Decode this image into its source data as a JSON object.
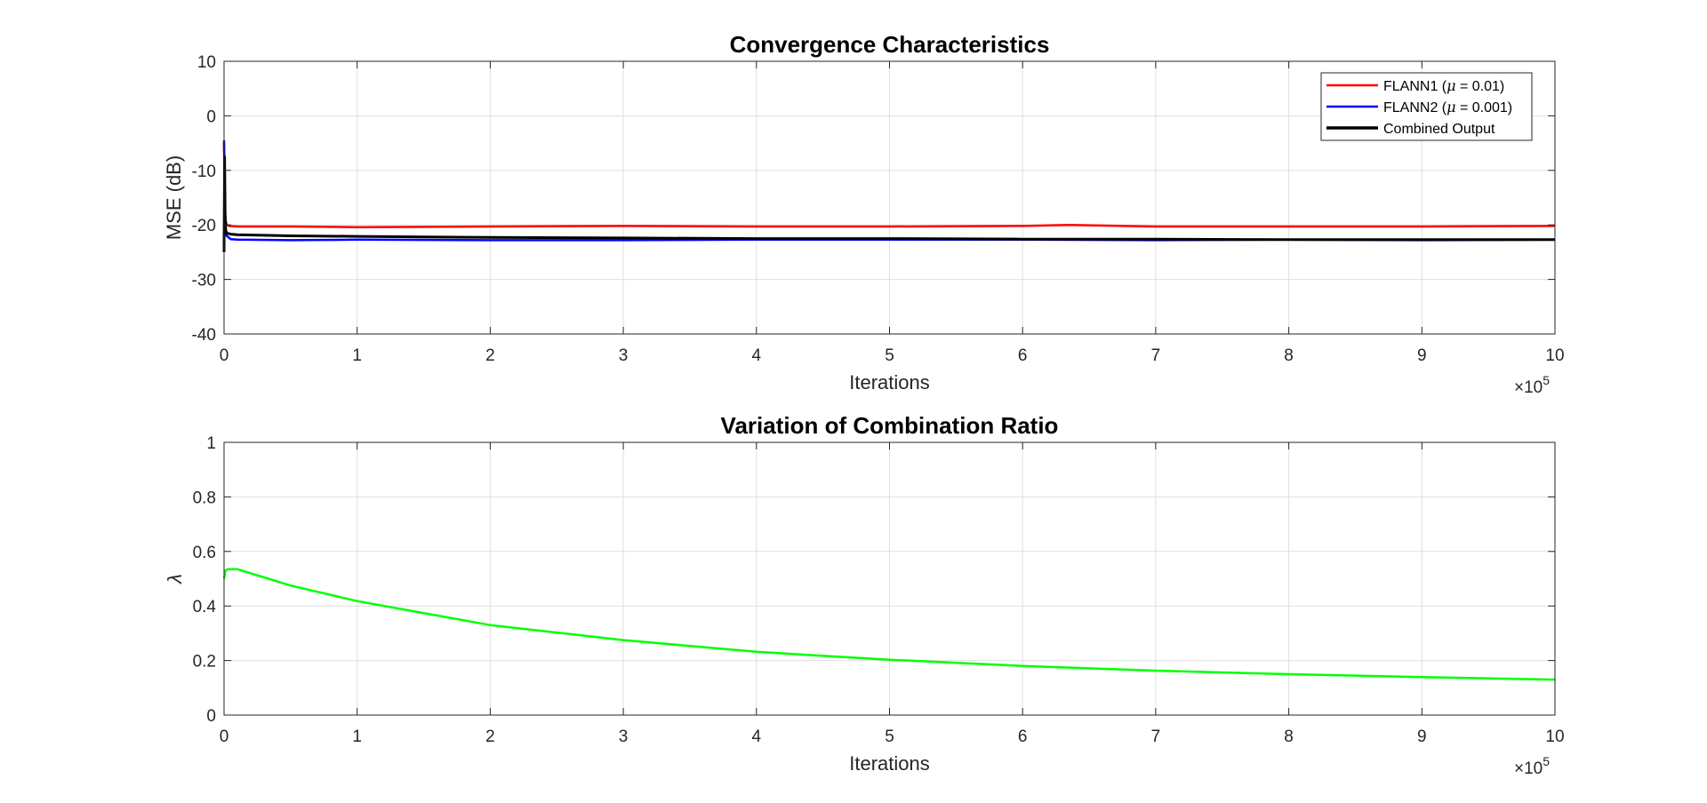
{
  "chart_data": [
    {
      "type": "line",
      "title": "Convergence Characteristics",
      "xlabel": "Iterations",
      "ylabel": "MSE (dB)",
      "xlim": [
        0,
        10
      ],
      "ylim": [
        -40,
        10
      ],
      "x_multiplier_label": "×10",
      "x_multiplier_exp": "5",
      "xticks": [
        "0",
        "1",
        "2",
        "3",
        "4",
        "5",
        "6",
        "7",
        "8",
        "9",
        "10"
      ],
      "yticks": [
        "-40",
        "-30",
        "-20",
        "-10",
        "0",
        "10"
      ],
      "grid": true,
      "legend_position": "top-right",
      "series": [
        {
          "name": "FLANN1 (μ = 0.01)",
          "legend_prefix": "FLANN1 (",
          "legend_mu": "μ",
          "legend_suffix": " = 0.01)",
          "color": "#ff0000",
          "x": [
            0,
            0.005,
            0.01,
            0.02,
            0.04,
            0.1,
            0.5,
            1,
            2,
            3,
            4,
            5,
            6,
            6.35,
            7,
            8,
            9,
            10
          ],
          "y": [
            -5,
            -15,
            -19,
            -20,
            -20.2,
            -20.3,
            -20.3,
            -20.4,
            -20.3,
            -20.2,
            -20.3,
            -20.3,
            -20.2,
            -20.0,
            -20.3,
            -20.3,
            -20.3,
            -20.2
          ]
        },
        {
          "name": "FLANN2 (μ = 0.001)",
          "legend_prefix": "FLANN2 (",
          "legend_mu": "μ",
          "legend_suffix": " = 0.001)",
          "color": "#0000ff",
          "x": [
            0,
            0.005,
            0.01,
            0.02,
            0.05,
            0.1,
            0.5,
            1,
            2,
            3,
            4,
            5,
            6,
            7,
            8,
            9,
            10
          ],
          "y": [
            -4.5,
            -14,
            -20,
            -22,
            -22.6,
            -22.7,
            -22.8,
            -22.7,
            -22.8,
            -22.8,
            -22.7,
            -22.7,
            -22.7,
            -22.8,
            -22.7,
            -22.8,
            -22.7
          ]
        },
        {
          "name": "Combined Output",
          "color": "#000000",
          "x": [
            0,
            0.004,
            0.008,
            0.012,
            0.02,
            0.05,
            0.1,
            0.3,
            0.5,
            1,
            1.5,
            2,
            3,
            4,
            5,
            6,
            7,
            8,
            9,
            10
          ],
          "y": [
            -25,
            -7.5,
            -18,
            -21,
            -21.5,
            -21.7,
            -21.8,
            -21.9,
            -22.0,
            -22.1,
            -22.2,
            -22.3,
            -22.4,
            -22.5,
            -22.5,
            -22.6,
            -22.6,
            -22.7,
            -22.7,
            -22.7
          ]
        }
      ]
    },
    {
      "type": "line",
      "title": "Variation of Combination Ratio",
      "xlabel": "Iterations",
      "ylabel": "λ",
      "xlim": [
        0,
        10
      ],
      "ylim": [
        0,
        1
      ],
      "x_multiplier_label": "×10",
      "x_multiplier_exp": "5",
      "xticks": [
        "0",
        "1",
        "2",
        "3",
        "4",
        "5",
        "6",
        "7",
        "8",
        "9",
        "10"
      ],
      "yticks": [
        "0",
        "0.2",
        "0.4",
        "0.6",
        "0.8",
        "1"
      ],
      "grid": true,
      "series": [
        {
          "color": "#00ff00",
          "x": [
            0,
            0.01,
            0.03,
            0.1,
            0.5,
            1,
            2,
            3,
            4,
            5,
            6,
            7,
            8,
            9,
            10
          ],
          "y": [
            0.5,
            0.53,
            0.535,
            0.535,
            0.475,
            0.418,
            0.33,
            0.275,
            0.232,
            0.203,
            0.18,
            0.163,
            0.15,
            0.139,
            0.13
          ]
        }
      ]
    }
  ]
}
